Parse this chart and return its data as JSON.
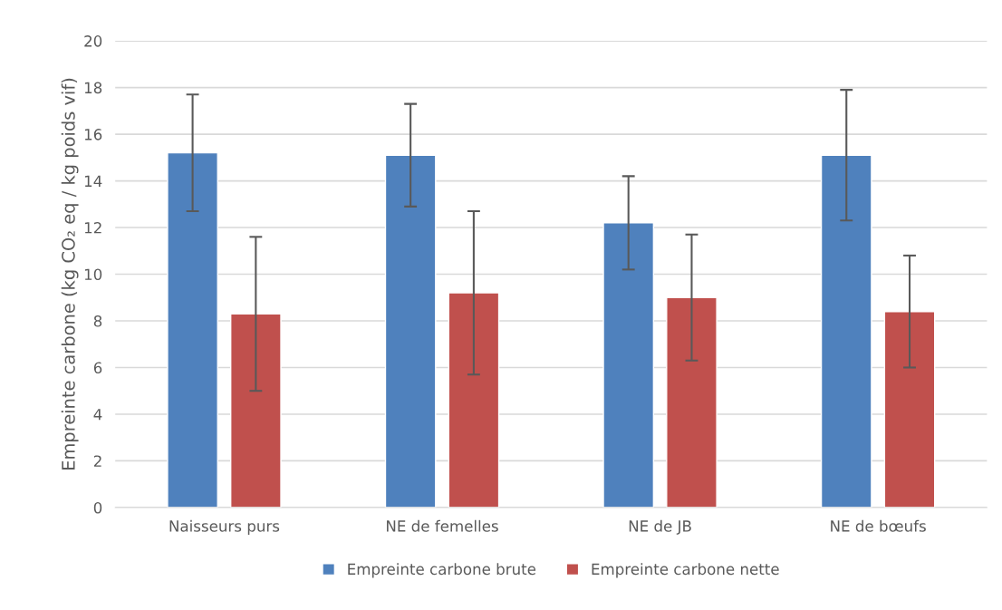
{
  "chart_data": {
    "type": "bar",
    "ylabel": "Empreinte carbone (kg CO₂ eq / kg poids vif)",
    "categories": [
      "Naisseurs purs",
      "NE de femelles",
      "NE de JB",
      "NE de bœufs"
    ],
    "series": [
      {
        "name": "Empreinte carbone brute",
        "color": "#4f81bd",
        "values": [
          15.2,
          15.1,
          12.2,
          15.1
        ],
        "errors": [
          2.5,
          2.2,
          2.0,
          2.8
        ]
      },
      {
        "name": "Empreinte carbone nette",
        "color": "#c0504d",
        "values": [
          8.3,
          9.2,
          9.0,
          8.4
        ],
        "errors": [
          3.3,
          3.5,
          2.7,
          2.4
        ]
      }
    ],
    "ylim": [
      0,
      20
    ],
    "yticks": [
      0,
      2,
      4,
      6,
      8,
      10,
      12,
      14,
      16,
      18,
      20
    ],
    "grid": "y",
    "legend": "bottom"
  }
}
